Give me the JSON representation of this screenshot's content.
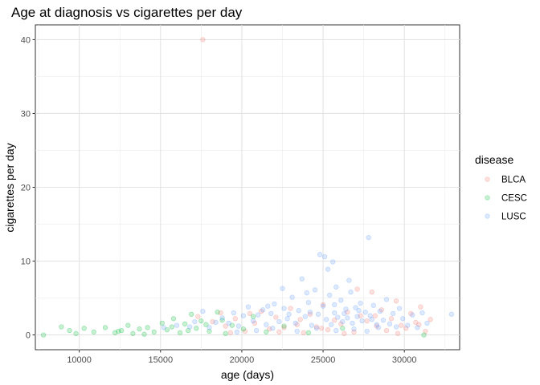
{
  "chart_data": {
    "type": "scatter",
    "title": "Age at diagnosis vs cigarettes per day",
    "xlabel": "age (days)",
    "ylabel": "cigarettes per day",
    "xlim": [
      7300,
      33400
    ],
    "ylim": [
      -2,
      42
    ],
    "x_ticks": [
      10000,
      15000,
      20000,
      25000,
      30000
    ],
    "y_ticks": [
      0,
      10,
      20,
      30,
      40
    ],
    "grid": true,
    "legend_position": "right",
    "legend_title": "disease",
    "series": [
      {
        "name": "BLCA",
        "color": "#F8766D",
        "points": [
          [
            17600,
            40
          ],
          [
            17300,
            2.5
          ],
          [
            18200,
            1.8
          ],
          [
            19000,
            1.2
          ],
          [
            19600,
            2.2
          ],
          [
            20200,
            0.5
          ],
          [
            20800,
            1.6
          ],
          [
            21200,
            3.2
          ],
          [
            21700,
            0.8
          ],
          [
            22100,
            2.4
          ],
          [
            22600,
            1.0
          ],
          [
            23000,
            3.6
          ],
          [
            23400,
            1.4
          ],
          [
            23800,
            0.3
          ],
          [
            24200,
            2.8
          ],
          [
            24600,
            1.1
          ],
          [
            25000,
            4.1
          ],
          [
            25300,
            0.7
          ],
          [
            25700,
            2.0
          ],
          [
            26100,
            1.5
          ],
          [
            26500,
            3.1
          ],
          [
            26900,
            0.4
          ],
          [
            27300,
            2.6
          ],
          [
            27700,
            1.9
          ],
          [
            28000,
            5.8
          ],
          [
            28300,
            1.2
          ],
          [
            28600,
            3.4
          ],
          [
            28900,
            0.6
          ],
          [
            29200,
            2.2
          ],
          [
            29500,
            4.6
          ],
          [
            29800,
            1.3
          ],
          [
            30100,
            0.9
          ],
          [
            30400,
            2.9
          ],
          [
            30700,
            1.7
          ],
          [
            31000,
            3.8
          ],
          [
            31300,
            0.5
          ],
          [
            31600,
            2.1
          ],
          [
            27100,
            6.2
          ],
          [
            26300,
            0.2
          ],
          [
            24900,
            0.9
          ],
          [
            23600,
            2.1
          ],
          [
            22300,
            0.4
          ],
          [
            20500,
            2.9
          ],
          [
            19300,
            0.3
          ],
          [
            18700,
            3.0
          ],
          [
            28200,
            2.6
          ],
          [
            29600,
            0.2
          ],
          [
            30900,
            1.4
          ]
        ]
      },
      {
        "name": "CESC",
        "color": "#00BA38",
        "points": [
          [
            7800,
            0.0
          ],
          [
            8900,
            1.1
          ],
          [
            9400,
            0.6
          ],
          [
            9800,
            0.2
          ],
          [
            10300,
            0.9
          ],
          [
            10900,
            0.4
          ],
          [
            11600,
            1.0
          ],
          [
            12200,
            0.3
          ],
          [
            12600,
            0.6
          ],
          [
            13000,
            1.3
          ],
          [
            13300,
            0.2
          ],
          [
            13700,
            0.8
          ],
          [
            14200,
            1.0
          ],
          [
            14600,
            0.4
          ],
          [
            15100,
            1.6
          ],
          [
            15400,
            0.7
          ],
          [
            15800,
            2.2
          ],
          [
            16200,
            0.3
          ],
          [
            16500,
            1.5
          ],
          [
            16900,
            2.8
          ],
          [
            17200,
            0.9
          ],
          [
            17500,
            1.9
          ],
          [
            18000,
            0.5
          ],
          [
            18500,
            3.1
          ],
          [
            19000,
            0.2
          ],
          [
            19400,
            1.3
          ],
          [
            20100,
            0.8
          ],
          [
            20700,
            2.5
          ],
          [
            21500,
            0.4
          ],
          [
            12400,
            0.5
          ],
          [
            14000,
            0.1
          ],
          [
            15700,
            1.1
          ],
          [
            16700,
            0.6
          ],
          [
            17800,
            1.4
          ],
          [
            18800,
            2.0
          ],
          [
            22600,
            1.2
          ],
          [
            24100,
            0.3
          ],
          [
            26200,
            0.9
          ],
          [
            31200,
            0.0
          ]
        ]
      },
      {
        "name": "LUSC",
        "color": "#619CFF",
        "points": [
          [
            15200,
            1.0
          ],
          [
            16000,
            1.3
          ],
          [
            16800,
            1.1
          ],
          [
            17100,
            1.8
          ],
          [
            17600,
            3.2
          ],
          [
            18000,
            1.0
          ],
          [
            18400,
            1.7
          ],
          [
            18800,
            2.3
          ],
          [
            19200,
            1.6
          ],
          [
            19500,
            3.0
          ],
          [
            19800,
            1.2
          ],
          [
            20100,
            2.6
          ],
          [
            20400,
            3.8
          ],
          [
            20700,
            1.9
          ],
          [
            21000,
            2.7
          ],
          [
            21300,
            3.4
          ],
          [
            21500,
            1.4
          ],
          [
            21800,
            2.9
          ],
          [
            22000,
            4.2
          ],
          [
            22300,
            1.8
          ],
          [
            22600,
            3.6
          ],
          [
            22800,
            2.2
          ],
          [
            23100,
            5.1
          ],
          [
            23300,
            1.6
          ],
          [
            23500,
            3.3
          ],
          [
            23700,
            7.6
          ],
          [
            23900,
            2.5
          ],
          [
            24100,
            4.4
          ],
          [
            24300,
            1.3
          ],
          [
            24500,
            6.1
          ],
          [
            24700,
            2.8
          ],
          [
            24800,
            10.9
          ],
          [
            25000,
            3.9
          ],
          [
            25100,
            10.6
          ],
          [
            25200,
            2.1
          ],
          [
            25400,
            5.4
          ],
          [
            25500,
            1.4
          ],
          [
            25600,
            9.9
          ],
          [
            25700,
            3.0
          ],
          [
            25800,
            6.5
          ],
          [
            25900,
            2.4
          ],
          [
            26100,
            4.7
          ],
          [
            26200,
            1.8
          ],
          [
            26400,
            3.5
          ],
          [
            26500,
            2.3
          ],
          [
            26700,
            5.8
          ],
          [
            26800,
            1.6
          ],
          [
            27000,
            3.7
          ],
          [
            27100,
            2.5
          ],
          [
            27300,
            4.3
          ],
          [
            27400,
            1.9
          ],
          [
            27600,
            3.1
          ],
          [
            27800,
            13.2
          ],
          [
            27900,
            2.6
          ],
          [
            28100,
            4.0
          ],
          [
            28300,
            1.4
          ],
          [
            28500,
            3.2
          ],
          [
            28700,
            2.0
          ],
          [
            28900,
            4.8
          ],
          [
            29100,
            1.5
          ],
          [
            29300,
            2.9
          ],
          [
            29500,
            1.1
          ],
          [
            29700,
            3.6
          ],
          [
            29900,
            2.2
          ],
          [
            30200,
            1.3
          ],
          [
            30500,
            2.7
          ],
          [
            30800,
            1.0
          ],
          [
            31100,
            3.0
          ],
          [
            31400,
            1.6
          ],
          [
            32900,
            2.8
          ],
          [
            22500,
            6.3
          ],
          [
            24000,
            5.7
          ],
          [
            25300,
            8.9
          ],
          [
            26600,
            7.4
          ],
          [
            23400,
            0.5
          ],
          [
            24600,
            0.9
          ],
          [
            25800,
            0.6
          ],
          [
            26900,
            0.8
          ],
          [
            27700,
            0.5
          ],
          [
            28400,
            1.0
          ],
          [
            21900,
            0.9
          ],
          [
            20900,
            0.6
          ],
          [
            19700,
            0.4
          ],
          [
            24200,
            3.1
          ],
          [
            25700,
            4.1
          ],
          [
            26300,
            2.9
          ],
          [
            27200,
            3.3
          ],
          [
            28000,
            2.1
          ],
          [
            22900,
            2.8
          ],
          [
            21600,
            3.9
          ]
        ]
      }
    ]
  }
}
